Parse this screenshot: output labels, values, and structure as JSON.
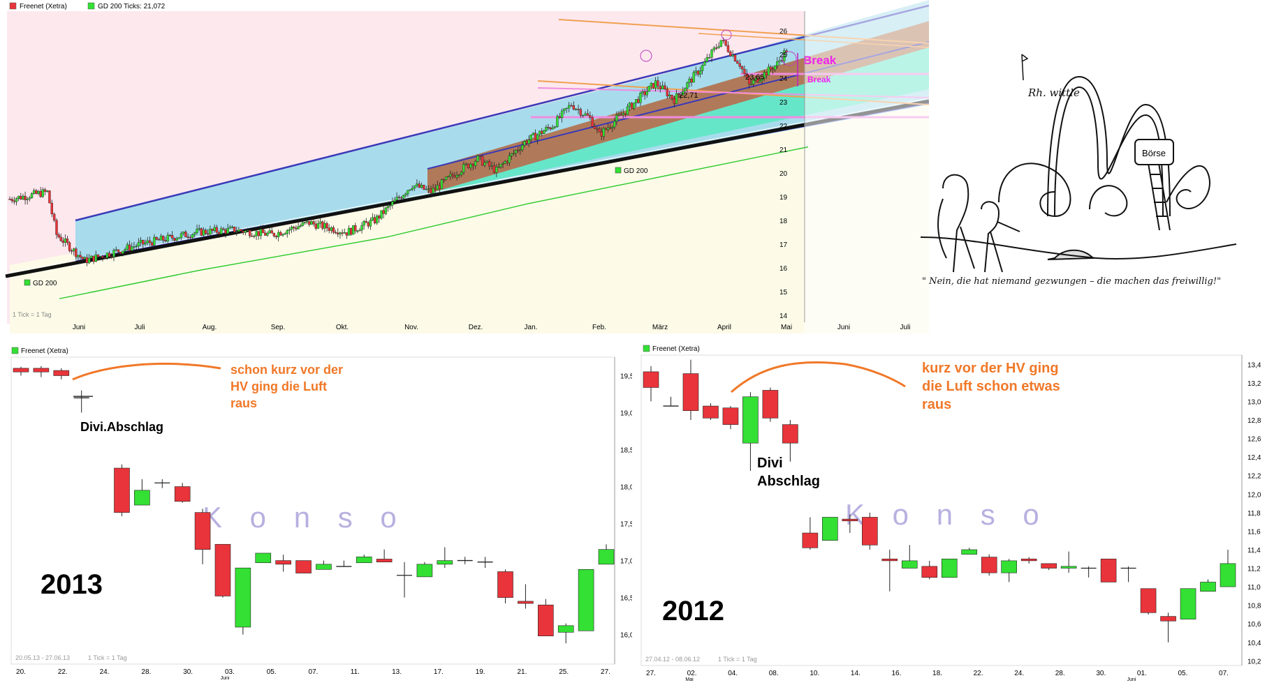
{
  "colors": {
    "up": "#33e033",
    "down": "#e8343a",
    "annotation": "#f07828",
    "watermark": "#b8b0e0"
  },
  "chart_data": [
    {
      "type": "candlestick",
      "legend": [
        "Freenet (Xetra)",
        "GD 200 Ticks: 21,072"
      ],
      "ylim": [
        14,
        26
      ],
      "y_ticks": [
        "26",
        "25",
        "24",
        "23",
        "22",
        "21",
        "20",
        "19",
        "18",
        "17",
        "16",
        "15",
        "14"
      ],
      "x_ticks": [
        "Juni",
        "Juli",
        "Aug.",
        "Sep.",
        "Okt.",
        "Nov.",
        "Dez.",
        "Jan.",
        "Feb.",
        "März",
        "April",
        "Mai",
        "Juni",
        "Juli"
      ],
      "annotations": [
        "Break",
        "Break",
        "23,65",
        "22,71",
        "GD 200",
        "GD 200"
      ],
      "footer": "1 Tick = 1 Tag",
      "close_path": [
        [
          0,
          18.9
        ],
        [
          4,
          19.2
        ],
        [
          5,
          17.4
        ],
        [
          8,
          16.3
        ],
        [
          14,
          17.0
        ],
        [
          20,
          17.5
        ],
        [
          24,
          17.6
        ],
        [
          28,
          17.4
        ],
        [
          32,
          17.9
        ],
        [
          36,
          17.5
        ],
        [
          39,
          18.0
        ],
        [
          43,
          19.5
        ],
        [
          45,
          19.2
        ],
        [
          48,
          20.1
        ],
        [
          50,
          20.6
        ],
        [
          52,
          20.1
        ],
        [
          55,
          21.3
        ],
        [
          58,
          22.0
        ],
        [
          60,
          22.9
        ],
        [
          62,
          22.3
        ],
        [
          63,
          21.6
        ],
        [
          66,
          22.7
        ],
        [
          69,
          23.8
        ],
        [
          71,
          23.1
        ],
        [
          74,
          24.5
        ],
        [
          76,
          25.6
        ],
        [
          78,
          24.6
        ],
        [
          79,
          23.7
        ],
        [
          82,
          24.6
        ],
        [
          83,
          25.2
        ],
        [
          84,
          23.6
        ]
      ],
      "gd200_path": [
        [
          5,
          14.7
        ],
        [
          20,
          15.9
        ],
        [
          40,
          17.3
        ],
        [
          55,
          18.7
        ],
        [
          70,
          19.9
        ],
        [
          80,
          20.7
        ],
        [
          85,
          21.1
        ]
      ]
    },
    {
      "type": "candlestick",
      "year": "2013",
      "legend": [
        "Freenet (Xetra)"
      ],
      "ylim": [
        15.6,
        19.75
      ],
      "y_ticks": [
        "19,5",
        "19,0",
        "18,5",
        "18,0",
        "17,5",
        "17,0",
        "16,5",
        "16,0"
      ],
      "x_ticks": [
        "20.",
        "22.",
        "24.",
        "28.",
        "30.",
        "03.",
        "05.",
        "07.",
        "11.",
        "13.",
        "17.",
        "19.",
        "21.",
        "25.",
        "27."
      ],
      "x_sub": "Juni",
      "annotations": [
        "schon kurz vor der\nHV ging die Luft\nraus",
        "Divi.Abschlag"
      ],
      "watermark": "K o n s o",
      "footer": [
        "20.05.13 - 27.06.13",
        "1 Tick = 1 Tag"
      ],
      "candles": [
        [
          19.6,
          19.55,
          19.62,
          19.5
        ],
        [
          19.6,
          19.55,
          19.63,
          19.48
        ],
        [
          19.57,
          19.5,
          19.6,
          19.45
        ],
        [
          19.2,
          19.2,
          19.3,
          19.0
        ],
        [
          null,
          null,
          null,
          null
        ],
        [
          18.25,
          17.65,
          18.3,
          17.6
        ],
        [
          17.75,
          17.95,
          18.1,
          17.75
        ],
        [
          18.05,
          18.05,
          18.1,
          17.98
        ],
        [
          18.0,
          17.8,
          18.05,
          17.78
        ],
        [
          17.65,
          17.15,
          17.7,
          16.95
        ],
        [
          17.22,
          16.52,
          17.22,
          16.5
        ],
        [
          16.1,
          16.9,
          16.9,
          16.0
        ],
        [
          16.97,
          17.1,
          17.1,
          16.97
        ],
        [
          17.0,
          16.95,
          17.08,
          16.85
        ],
        [
          17.0,
          16.83,
          17.0,
          16.83
        ],
        [
          16.88,
          16.95,
          17.0,
          16.88
        ],
        [
          16.92,
          16.92,
          17.0,
          16.92
        ],
        [
          16.97,
          17.05,
          17.08,
          16.97
        ],
        [
          17.02,
          16.98,
          17.15,
          16.98
        ],
        [
          16.8,
          16.8,
          16.98,
          16.5
        ],
        [
          16.78,
          16.95,
          16.98,
          16.78
        ],
        [
          16.95,
          17.0,
          17.18,
          16.9
        ],
        [
          17.0,
          17.0,
          17.05,
          16.95
        ],
        [
          16.98,
          16.98,
          17.05,
          16.9
        ],
        [
          16.85,
          16.5,
          16.88,
          16.42
        ],
        [
          16.45,
          16.42,
          16.68,
          16.35
        ],
        [
          16.4,
          15.98,
          16.48,
          15.98
        ],
        [
          16.03,
          16.12,
          16.15,
          15.88
        ],
        [
          16.05,
          16.88,
          16.88,
          16.05
        ],
        [
          16.95,
          17.15,
          17.22,
          16.95
        ]
      ]
    },
    {
      "type": "candlestick",
      "year": "2012",
      "legend": [
        "Freenet (Xetra)"
      ],
      "ylim": [
        10.15,
        13.5
      ],
      "y_ticks": [
        "13,4",
        "13,2",
        "13,0",
        "12,8",
        "12,6",
        "12,4",
        "12,2",
        "12,0",
        "11,8",
        "11,6",
        "11,4",
        "11,2",
        "11,0",
        "10,8",
        "10,6",
        "10,4",
        "10,2"
      ],
      "x_ticks": [
        "27.",
        "02.",
        "04.",
        "08.",
        "10.",
        "14.",
        "16.",
        "18.",
        "22.",
        "24.",
        "28.",
        "30.",
        "01.",
        "05.",
        "07."
      ],
      "x_subs": [
        "Mai",
        "Juni"
      ],
      "annotations": [
        "kurz vor der HV ging\ndie Luft schon etwas\nraus",
        "Divi\nAbschlag"
      ],
      "watermark": "K o n s o",
      "footer": [
        "27.04.12 - 08.06.12",
        "1 Tick = 1 Tag"
      ],
      "candles": [
        [
          13.32,
          13.15,
          13.38,
          13.0
        ],
        [
          12.95,
          12.95,
          13.05,
          12.95
        ],
        [
          13.3,
          12.9,
          13.45,
          12.8
        ],
        [
          12.95,
          12.82,
          12.98,
          12.8
        ],
        [
          12.93,
          12.75,
          12.95,
          12.7
        ],
        [
          12.55,
          13.05,
          13.1,
          12.25
        ],
        [
          13.12,
          12.82,
          13.15,
          12.78
        ],
        [
          12.75,
          12.55,
          12.8,
          12.35
        ],
        [
          11.58,
          11.42,
          11.75,
          11.4
        ],
        [
          11.5,
          11.75,
          11.75,
          11.5
        ],
        [
          11.73,
          11.71,
          11.78,
          11.58
        ],
        [
          11.75,
          11.45,
          11.8,
          11.4
        ],
        [
          11.3,
          11.28,
          11.4,
          10.95
        ],
        [
          11.2,
          11.28,
          11.45,
          11.2
        ],
        [
          11.22,
          11.1,
          11.28,
          11.08
        ],
        [
          11.1,
          11.3,
          11.3,
          11.1
        ],
        [
          11.35,
          11.4,
          11.42,
          11.35
        ],
        [
          11.32,
          11.15,
          11.35,
          11.12
        ],
        [
          11.15,
          11.28,
          11.3,
          11.05
        ],
        [
          11.3,
          11.28,
          11.32,
          11.25
        ],
        [
          11.25,
          11.2,
          11.25,
          11.18
        ],
        [
          11.2,
          11.22,
          11.38,
          11.15
        ],
        [
          11.2,
          11.2,
          11.22,
          11.1
        ],
        [
          11.3,
          11.05,
          11.3,
          11.05
        ],
        [
          11.2,
          11.2,
          11.22,
          11.05
        ],
        [
          10.98,
          10.72,
          10.98,
          10.7
        ],
        [
          10.68,
          10.63,
          10.72,
          10.4
        ],
        [
          10.65,
          10.98,
          10.98,
          10.65
        ],
        [
          10.95,
          11.05,
          11.08,
          10.95
        ],
        [
          11.0,
          11.25,
          11.4,
          11.0
        ]
      ]
    }
  ],
  "cartoon": {
    "sign": "Börse",
    "caption": "\" Nein, die hat niemand gezwungen – die machen das freiwillig!\"",
    "signature": "Rh. wittle"
  }
}
